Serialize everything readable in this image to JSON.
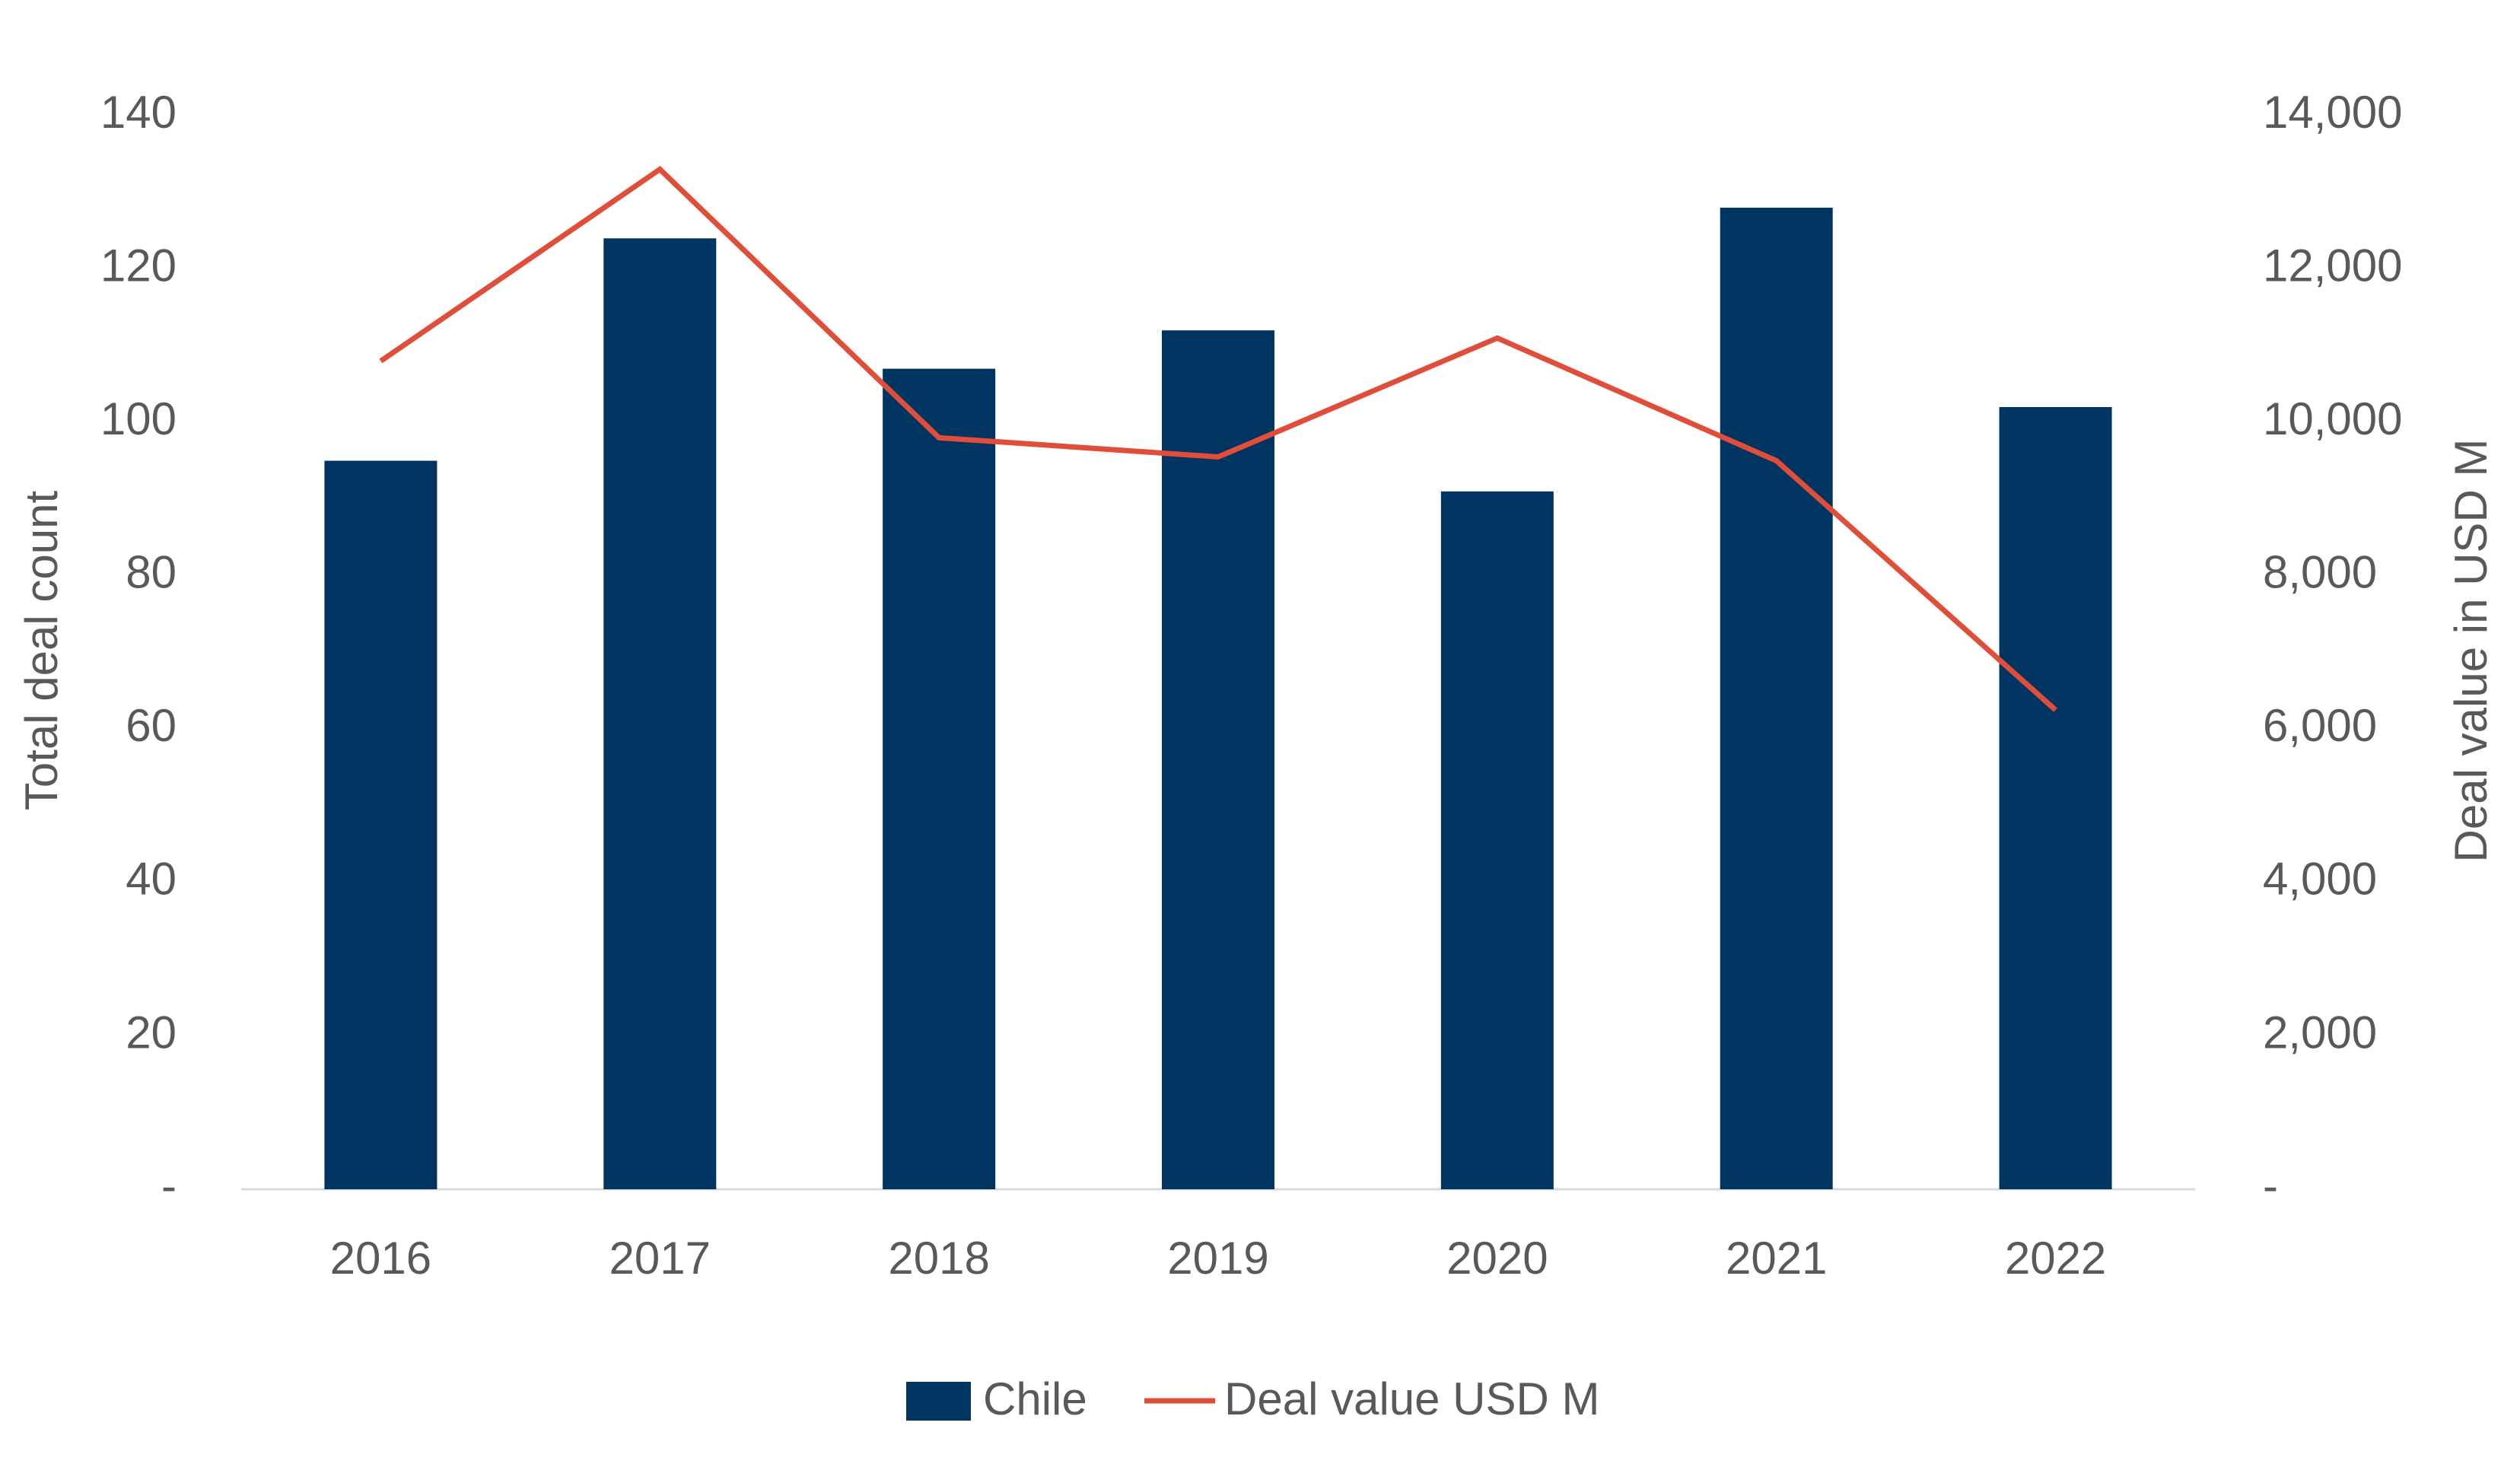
{
  "chart_data": {
    "type": "bar-line",
    "categories": [
      "2016",
      "2017",
      "2018",
      "2019",
      "2020",
      "2021",
      "2022"
    ],
    "series": [
      {
        "name": "Chile",
        "type": "bar",
        "color": "#003561",
        "values": [
          95,
          124,
          107,
          112,
          91,
          128,
          102
        ]
      },
      {
        "name": "Deal value USD M",
        "type": "line",
        "axis": "y2",
        "color": "#E04E39",
        "values": [
          10800,
          13300,
          9800,
          9550,
          11100,
          9500,
          6250
        ]
      }
    ],
    "y_label": "Total deal count",
    "y2_label": "Deal value in USD M",
    "ylim": [
      0,
      140
    ],
    "yticks": [
      {
        "value": 0,
        "label": "-"
      },
      20,
      40,
      60,
      80,
      100,
      120,
      140
    ],
    "y2lim": [
      0,
      14000
    ],
    "y2ticks": [
      {
        "value": 0,
        "label": "-"
      },
      {
        "value": 2000,
        "label": "2,000"
      },
      {
        "value": 4000,
        "label": "4,000"
      },
      {
        "value": 6000,
        "label": "6,000"
      },
      {
        "value": 8000,
        "label": "8,000"
      },
      {
        "value": 10000,
        "label": "10,000"
      },
      {
        "value": 12000,
        "label": "12,000"
      },
      {
        "value": 14000,
        "label": "14,000"
      }
    ],
    "grid": false,
    "legend": "bottom"
  }
}
